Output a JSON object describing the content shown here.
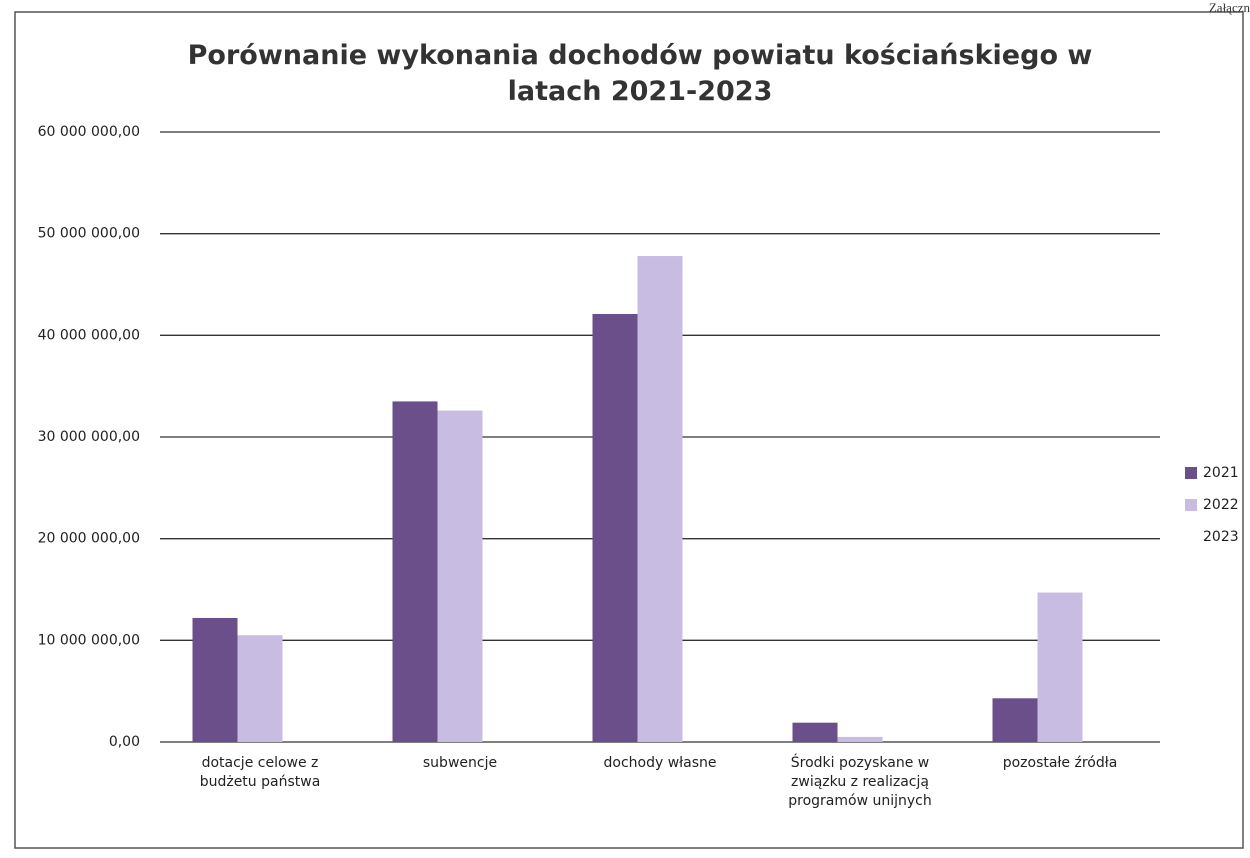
{
  "header_note": "Załączn",
  "chart_data": {
    "type": "bar",
    "title": "Porównanie wykonania dochodów powiatu kościańskiego w latach 2021-2023",
    "categories": [
      "dotacje celowe z budżetu państwa",
      "subwencje",
      "dochody własne",
      "Środki pozyskane w związku z realizacją programów unijnych",
      "pozostałe źródła"
    ],
    "series": [
      {
        "name": "2021",
        "color": "#6a4f8b",
        "values": [
          12200000,
          33500000,
          42100000,
          1900000,
          4300000
        ]
      },
      {
        "name": "2022",
        "color": "#c8bce2",
        "values": [
          10500000,
          32600000,
          47800000,
          500000,
          14700000
        ]
      },
      {
        "name": "2023",
        "color": "#ffffff",
        "values": [
          null,
          null,
          null,
          null,
          null
        ]
      }
    ],
    "ylim": [
      0,
      60000000
    ],
    "yticks": [
      {
        "value": 0,
        "label": "0,00"
      },
      {
        "value": 10000000,
        "label": "10 000 000,00"
      },
      {
        "value": 20000000,
        "label": "20 000 000,00"
      },
      {
        "value": 30000000,
        "label": "30 000 000,00"
      },
      {
        "value": 40000000,
        "label": "40 000 000,00"
      },
      {
        "value": 50000000,
        "label": "50 000 000,00"
      },
      {
        "value": 60000000,
        "label": "60 000 000,00"
      }
    ],
    "grid": true,
    "legend": "right"
  }
}
